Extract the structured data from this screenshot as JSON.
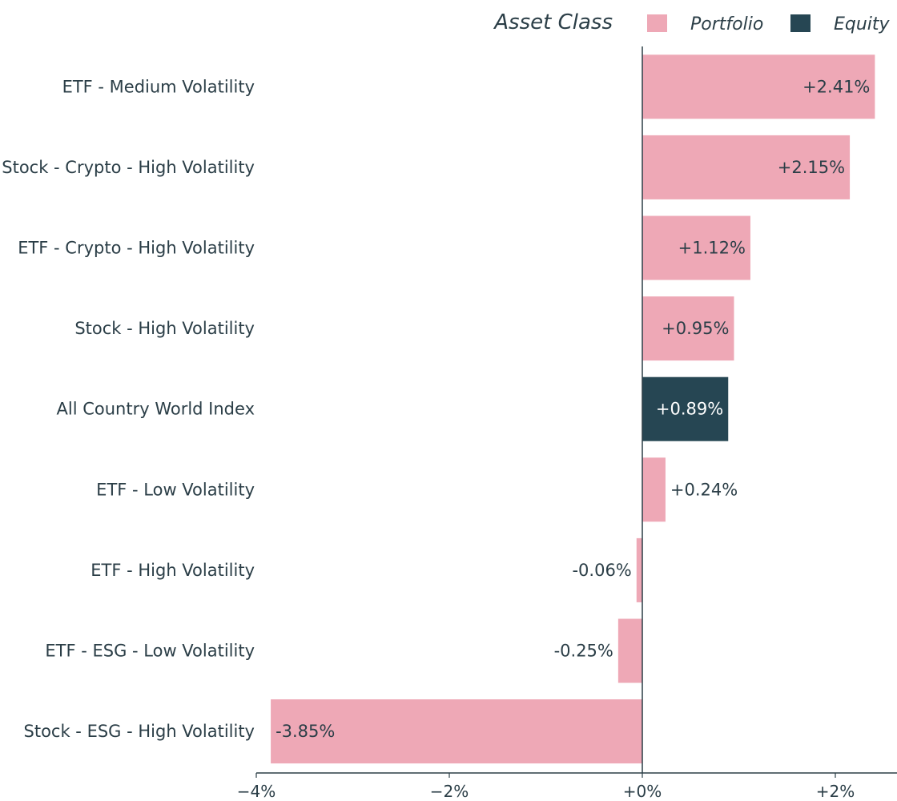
{
  "chart_data": {
    "type": "bar",
    "orientation": "horizontal",
    "title": "",
    "xlabel": "",
    "ylabel": "",
    "legend": {
      "title": "Asset Class",
      "placement": "top-right",
      "entries": [
        {
          "name": "Portfolio",
          "color": "#eea8b6"
        },
        {
          "name": "Equity",
          "color": "#264653"
        }
      ]
    },
    "xlim": [
      -4.3,
      2.65
    ],
    "x_ticks": [
      -4,
      -2,
      0,
      2
    ],
    "x_tick_labels": [
      "−4%",
      "−2%",
      "+0%",
      "+2%"
    ],
    "grid": false,
    "categories": [
      "ETF - Medium Volatility",
      "Stock - Crypto - High Volatility",
      "ETF - Crypto - High Volatility",
      "Stock - High Volatility",
      "All Country World Index",
      "ETF - Low Volatility",
      "ETF - High Volatility",
      "ETF - ESG - Low Volatility",
      "Stock - ESG - High Volatility"
    ],
    "values": [
      2.41,
      2.15,
      1.12,
      0.95,
      0.89,
      0.24,
      -0.06,
      -0.25,
      -3.85
    ],
    "value_labels": [
      "+2.41%",
      "+2.15%",
      "+1.12%",
      "+0.95%",
      "+0.89%",
      "+0.24%",
      "-0.06%",
      "-0.25%",
      "-3.85%"
    ],
    "groups": [
      "Portfolio",
      "Portfolio",
      "Portfolio",
      "Portfolio",
      "Equity",
      "Portfolio",
      "Portfolio",
      "Portfolio",
      "Portfolio"
    ]
  },
  "colors": {
    "portfolio": "#eea8b6",
    "equity": "#264653",
    "text": "#2b3e47",
    "axis": "#2b3e47"
  }
}
